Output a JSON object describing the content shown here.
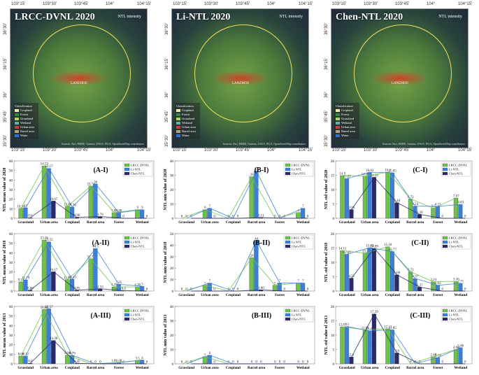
{
  "maps": [
    {
      "title": "LRCC-DVNL 2020",
      "city": "LANZHOU"
    },
    {
      "title": "Li-NTL 2020",
      "city": "LANZHOU"
    },
    {
      "title": "Chen-NTL 2020",
      "city": "LANZHOU"
    }
  ],
  "map_legend": {
    "ntl_label": "NTL intensity",
    "classification_label": "Classification",
    "classes": [
      "Cropland",
      "Forest",
      "Grassland",
      "Wetland",
      "Urban area",
      "Barrel area",
      "Water"
    ],
    "class_colors": [
      "#f1e7a6",
      "#2f8a3a",
      "#a9d866",
      "#5fb3a8",
      "#d33a3a",
      "#b8a27c",
      "#2f6fd0"
    ],
    "attribution": "Sources: Esri, HERE, Garmin, USGS, NGA, OpenStreetMap contributors"
  },
  "map_coords": {
    "top": [
      "103°15'",
      "103°30'",
      "103°45'",
      "104°",
      "104°15'"
    ],
    "left": [
      "36°30'",
      "36°15'",
      "36°",
      "35°45'",
      "35°30'"
    ],
    "bottom": [
      "103°15'",
      "103°30'",
      "103°45'",
      "104°",
      "104°15'"
    ]
  },
  "legend_series": [
    "LRCC-DVNL",
    "Li-NTL",
    "Chen-NTL"
  ],
  "series_colors": [
    "#6cc24a",
    "#3b7fd6",
    "#2a2a6a"
  ],
  "chart_data": [
    {
      "id": "A-I",
      "type": "bar",
      "panel": "(A-I)",
      "ylabel": "NTL mean value of 2020",
      "categories": [
        "Grassland",
        "Urban area",
        "Cropland",
        "Barrel area",
        "Forest",
        "Wetland"
      ],
      "series": [
        {
          "name": "LRCC-DVNL",
          "values": [
            10.36,
            54.73,
            12.48,
            33.74,
            5.88,
            9
          ]
        },
        {
          "name": "Li-NTL",
          "values": [
            11,
            52.17,
            11.76,
            36,
            5.88,
            9
          ]
        },
        {
          "name": "Chen-NTL",
          "values": [
            0.6,
            18.07,
            0.96,
            1.76,
            0,
            0
          ]
        }
      ],
      "labels": [
        [
          "10.36",
          "11",
          "0.6"
        ],
        [
          "54.73",
          "52.17",
          "18.07"
        ],
        [
          "12.48",
          "11.76",
          "0.96"
        ],
        [
          "33.74",
          "36",
          "1.76"
        ],
        [
          "5.88",
          "5.88",
          "0"
        ],
        [
          "9",
          "9",
          "0"
        ]
      ],
      "ylim": [
        0,
        60
      ]
    },
    {
      "id": "B-I",
      "type": "bar",
      "panel": "(B-I)",
      "ylabel": "NTL min value of 2020",
      "categories": [
        "Grassland",
        "Urban area",
        "Cropland",
        "Barrel area",
        "Forest",
        "Wetland"
      ],
      "series": [
        {
          "name": "LRCC-DVNL",
          "values": [
            0,
            6,
            0,
            29,
            0,
            4
          ]
        },
        {
          "name": "Li-NTL",
          "values": [
            0,
            7,
            0,
            33,
            0,
            7
          ]
        },
        {
          "name": "Chen-NTL",
          "values": [
            0,
            0,
            0,
            0.51,
            0,
            0
          ]
        }
      ],
      "labels": [
        [
          "0",
          "0",
          "0"
        ],
        [
          "6",
          "7",
          "0"
        ],
        [
          "0",
          "0",
          "0"
        ],
        [
          "29",
          "33",
          "0.51"
        ],
        [
          "0",
          "0",
          "0"
        ],
        [
          "4",
          "7",
          "0"
        ]
      ],
      "ylim": [
        0,
        40
      ]
    },
    {
      "id": "C-I",
      "type": "bar",
      "panel": "(C-I)",
      "ylabel": "NTL std value of 2020",
      "categories": [
        "Grassland",
        "Urban area",
        "Cropland",
        "Barrel area",
        "Forest",
        "Wetland"
      ],
      "series": [
        {
          "name": "LRCC-DVNL",
          "values": [
            14.9,
            14.69,
            16.1,
            6.72,
            3.5,
            7.07
          ]
        },
        {
          "name": "Li-NTL",
          "values": [
            13.87,
            16.02,
            15.85,
            4.24,
            4.17,
            4.83
          ]
        },
        {
          "name": "Chen-NTL",
          "values": [
            3.06,
            14.29,
            5.44,
            1.36,
            0,
            0
          ]
        }
      ],
      "labels": [
        [
          "14.9",
          "13.87",
          "3.06"
        ],
        [
          "14.69",
          "16.02",
          "14.29"
        ],
        [
          "16.1",
          "15.85",
          "5.44"
        ],
        [
          "6.72",
          "4.24",
          "1.36"
        ],
        [
          "3.5",
          "4.17",
          "0"
        ],
        [
          "7.07",
          "4.83",
          "0"
        ]
      ],
      "ylim": [
        0,
        20
      ]
    },
    {
      "id": "A-II",
      "type": "bar",
      "panel": "(A-II)",
      "ylabel": "NTL mean value of 2018",
      "categories": [
        "Grassland",
        "Urban area",
        "Cropland",
        "Barrel area",
        "Forest",
        "Wetland"
      ],
      "series": [
        {
          "name": "LRCC-DVNL",
          "values": [
            9.53,
            53.36,
            11.89,
            33.78,
            4.29,
            4.38
          ]
        },
        {
          "name": "Li-NTL",
          "values": [
            11.79,
            51.55,
            12.43,
            44.5,
            7.05,
            5
          ]
        },
        {
          "name": "Chen-NTL",
          "values": [
            0.89,
            20.17,
            0.85,
            2.33,
            0.4,
            0
          ]
        }
      ],
      "labels": [
        [
          "9.53",
          "11.79",
          "0.89"
        ],
        [
          "53.36",
          "51.55",
          "20.17"
        ],
        [
          "11.89",
          "12.43",
          "0.85"
        ],
        [
          "33.78",
          "44.5",
          "2.33"
        ],
        [
          "4.29",
          "7.05",
          "0.4"
        ],
        [
          "4.38",
          "5",
          "0"
        ]
      ],
      "ylim": [
        0,
        60
      ]
    },
    {
      "id": "B-II",
      "type": "bar",
      "panel": "(B-II)",
      "ylabel": "NTL min value of 2018",
      "categories": [
        "Grassland",
        "Urban area",
        "Cropland",
        "Barrel area",
        "Forest",
        "Wetland"
      ],
      "series": [
        {
          "name": "LRCC-DVNL",
          "values": [
            0,
            5,
            0,
            29,
            5,
            7
          ]
        },
        {
          "name": "Li-NTL",
          "values": [
            0,
            7,
            0,
            44,
            7,
            7
          ]
        },
        {
          "name": "Chen-NTL",
          "values": [
            0,
            0,
            0,
            1,
            0,
            0
          ]
        }
      ],
      "labels": [
        [
          "0",
          "0",
          "0"
        ],
        [
          "5",
          "7",
          "0"
        ],
        [
          "0",
          "0",
          "0"
        ],
        [
          "29",
          "44",
          "1.00"
        ],
        [
          "5",
          "7",
          "0"
        ],
        [
          "7",
          "7",
          "0"
        ]
      ],
      "ylim": [
        0,
        50
      ]
    },
    {
      "id": "C-II",
      "type": "bar",
      "panel": "(C-II)",
      "ylabel": "NTL std value of 2018",
      "categories": [
        "Grassland",
        "Urban area",
        "Cropland",
        "Barrel area",
        "Forest",
        "Wetland"
      ],
      "series": [
        {
          "name": "LRCC-DVNL",
          "values": [
            14.11,
            13.2,
            15.44,
            6.72,
            3.24,
            3.36
          ]
        },
        {
          "name": "Li-NTL",
          "values": [
            12.85,
            15.09,
            13.77,
            4.37,
            2.02,
            2.71
          ]
        },
        {
          "name": "Chen-NTL",
          "values": [
            4.51,
            14.89,
            5.68,
            1.37,
            0,
            0
          ]
        }
      ],
      "labels": [
        [
          "14.11",
          "12.85",
          "4.51"
        ],
        [
          "13.2",
          "15.09",
          "14.89"
        ],
        [
          "15.44",
          "13.77",
          "5.68"
        ],
        [
          "6.72",
          "4.37",
          "1.37"
        ],
        [
          "3.24",
          "2.02",
          "0"
        ],
        [
          "3.36",
          "2.71",
          "0"
        ]
      ],
      "ylim": [
        0,
        20
      ]
    },
    {
      "id": "A-III",
      "type": "bar",
      "panel": "(A-III)",
      "ylabel": "NTL mean value of 2013",
      "categories": [
        "Grassland",
        "Urban area",
        "Cropland",
        "Barrel area",
        "Forest",
        "Wetland"
      ],
      "series": [
        {
          "name": "LRCC-DVNL",
          "values": [
            8.08,
            56.88,
            8.98,
            0,
            1.05,
            3.5
          ]
        },
        {
          "name": "Li-NTL",
          "values": [
            8.12,
            57.57,
            8.79,
            0,
            1.08,
            4
          ]
        },
        {
          "name": "Chen-NTL",
          "values": [
            0.6,
            24.38,
            0.45,
            0,
            0,
            0
          ]
        }
      ],
      "labels": [
        [
          "8.08",
          "8.12",
          "0.6"
        ],
        [
          "56.88",
          "57.57",
          "24.38"
        ],
        [
          "8.98",
          "8.79",
          "0.45"
        ],
        [
          "0",
          "0",
          "0"
        ],
        [
          "1.05",
          "1.08",
          "0"
        ],
        [
          "3.5",
          "4",
          "0"
        ]
      ],
      "ylim": [
        0,
        60
      ]
    },
    {
      "id": "B-III",
      "type": "bar",
      "panel": "(B-III)",
      "ylabel": "NTL min value of 2013",
      "categories": [
        "Grassland",
        "Urban area",
        "Cropland",
        "Barrel area",
        "Forest",
        "Wetland"
      ],
      "series": [
        {
          "name": "LRCC-DVNL",
          "values": [
            0,
            5,
            0,
            0,
            0,
            0
          ]
        },
        {
          "name": "Li-NTL",
          "values": [
            0,
            6,
            0,
            0,
            0,
            0
          ]
        },
        {
          "name": "Chen-NTL",
          "values": [
            0,
            0,
            0,
            0,
            0,
            0
          ]
        }
      ],
      "labels": [
        [
          "0",
          "0",
          "0"
        ],
        [
          "5",
          "6",
          "0"
        ],
        [
          "0",
          "0",
          "0"
        ],
        [
          "0",
          "0",
          "0"
        ],
        [
          "0",
          "0",
          "0"
        ],
        [
          "0",
          "0",
          "0"
        ]
      ],
      "ylim": [
        0,
        40
      ]
    },
    {
      "id": "C-III",
      "type": "bar",
      "panel": "(C-III)",
      "ylabel": "NTL std value of 2013",
      "categories": [
        "Grassland",
        "Urban area",
        "Cropland",
        "Barrel area",
        "Forest",
        "Wetland"
      ],
      "series": [
        {
          "name": "LRCC-DVNL",
          "values": [
            12.87,
            11.86,
            12.21,
            0,
            2.48,
            4.98
          ]
        },
        {
          "name": "Li-NTL",
          "values": [
            13,
            11.48,
            11.85,
            0,
            2.19,
            5.66
          ]
        },
        {
          "name": "Chen-NTL",
          "values": [
            2.4,
            17.39,
            3.8,
            0,
            0,
            0
          ]
        }
      ],
      "labels": [
        [
          "12.87",
          "13",
          "2.4"
        ],
        [
          "11.86",
          "11.48",
          "17.39"
        ],
        [
          "12.21",
          "11.85",
          "3.8"
        ],
        [
          "0",
          "0",
          "0"
        ],
        [
          "2.48",
          "2.19",
          "0"
        ],
        [
          "4.98",
          "5.66",
          "0"
        ]
      ],
      "ylim": [
        0,
        20
      ]
    }
  ]
}
